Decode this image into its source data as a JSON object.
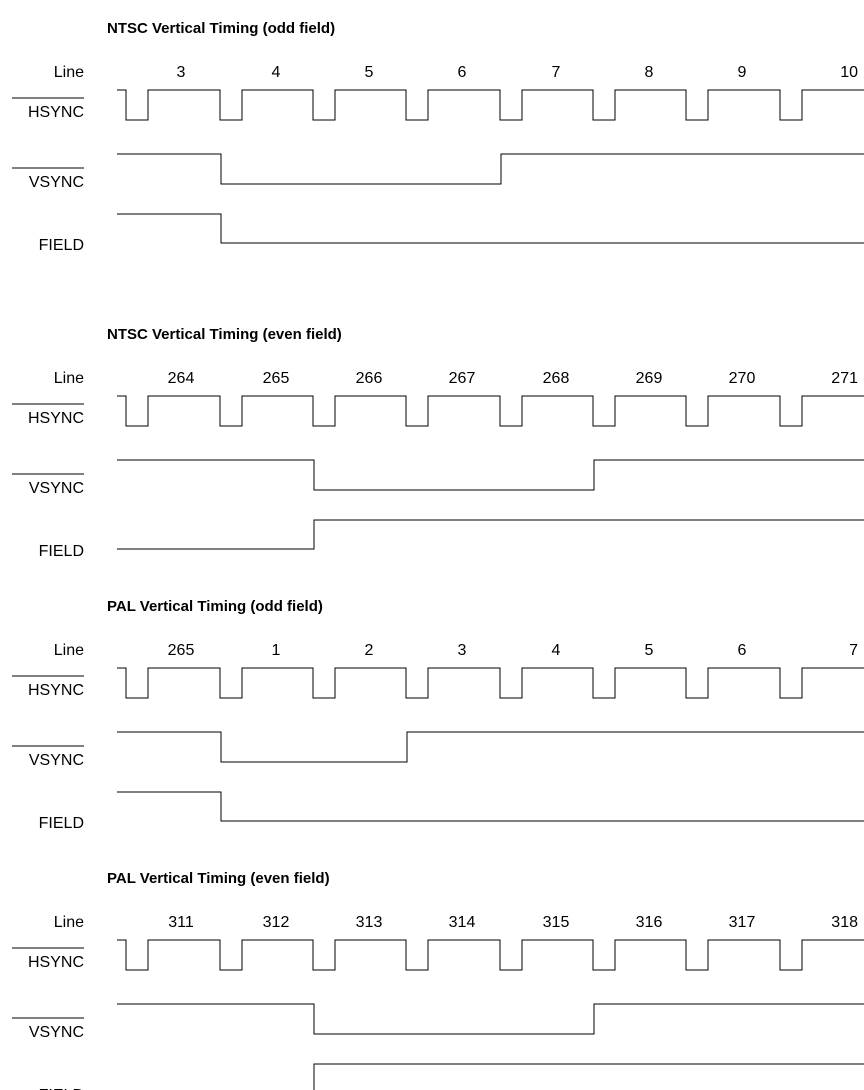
{
  "labels": {
    "line": "Line",
    "hsync": "HSYNC",
    "vsync": "VSYNC",
    "field": "FIELD"
  },
  "sections": [
    {
      "title": "NTSC Vertical Timing (odd field)",
      "line_numbers": [
        "3",
        "4",
        "5",
        "6",
        "7",
        "8",
        "9",
        "10"
      ],
      "vsync": {
        "low_from_pulse": 1,
        "low_to_pulse": 4
      },
      "field": {
        "initial": "high",
        "edge_at_pulse": 1
      }
    },
    {
      "title": "NTSC Vertical Timing   (even field)",
      "line_numbers": [
        "264",
        "265",
        "266",
        "267",
        "268",
        "269",
        "270",
        "271"
      ],
      "vsync": {
        "low_from_pulse": 2,
        "low_to_pulse": 5
      },
      "field": {
        "initial": "low",
        "edge_at_pulse": 2
      }
    },
    {
      "title": "PAL Vertical Timing  (odd field)",
      "line_numbers": [
        "265",
        "1",
        "2",
        "3",
        "4",
        "5",
        "6",
        "7"
      ],
      "vsync": {
        "low_from_pulse": 1,
        "low_to_pulse": 3
      },
      "field": {
        "initial": "high",
        "edge_at_pulse": 1
      }
    },
    {
      "title": "PAL Vertical Timing (even field)",
      "line_numbers": [
        "311",
        "312",
        "313",
        "314",
        "315",
        "316",
        "317",
        "318"
      ],
      "vsync": {
        "low_from_pulse": 2,
        "low_to_pulse": 5
      },
      "field": {
        "initial": "low",
        "edge_at_pulse": 2
      }
    }
  ]
}
